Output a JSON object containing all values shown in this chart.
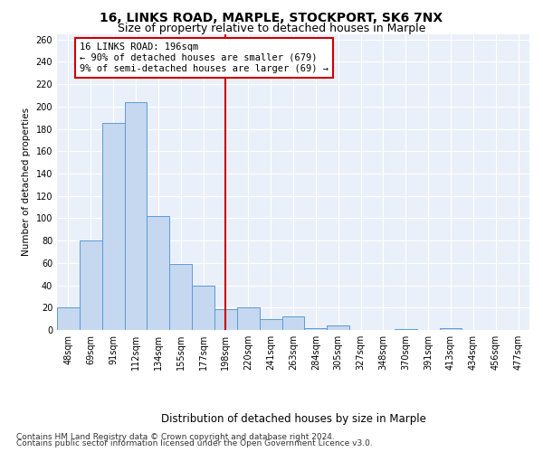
{
  "title": "16, LINKS ROAD, MARPLE, STOCKPORT, SK6 7NX",
  "subtitle": "Size of property relative to detached houses in Marple",
  "xlabel": "Distribution of detached houses by size in Marple",
  "ylabel": "Number of detached properties",
  "categories": [
    "48sqm",
    "69sqm",
    "91sqm",
    "112sqm",
    "134sqm",
    "155sqm",
    "177sqm",
    "198sqm",
    "220sqm",
    "241sqm",
    "263sqm",
    "284sqm",
    "305sqm",
    "327sqm",
    "348sqm",
    "370sqm",
    "391sqm",
    "413sqm",
    "434sqm",
    "456sqm",
    "477sqm"
  ],
  "values": [
    20,
    80,
    185,
    204,
    102,
    59,
    40,
    19,
    20,
    10,
    12,
    2,
    4,
    0,
    0,
    1,
    0,
    2,
    0,
    0,
    0
  ],
  "bar_color": "#c5d8f0",
  "bar_edge_color": "#5b9bd5",
  "background_color": "#eaf0f9",
  "grid_color": "#ffffff",
  "annotation_box_color": "#cc0000",
  "vline_color": "#cc0000",
  "annotation_text": "16 LINKS ROAD: 196sqm\n← 90% of detached houses are smaller (679)\n9% of semi-detached houses are larger (69) →",
  "footer_line1": "Contains HM Land Registry data © Crown copyright and database right 2024.",
  "footer_line2": "Contains public sector information licensed under the Open Government Licence v3.0.",
  "ylim": [
    0,
    265
  ],
  "yticks": [
    0,
    20,
    40,
    60,
    80,
    100,
    120,
    140,
    160,
    180,
    200,
    220,
    240,
    260
  ],
  "title_fontsize": 10,
  "subtitle_fontsize": 9,
  "xlabel_fontsize": 8.5,
  "ylabel_fontsize": 7.5,
  "tick_fontsize": 7,
  "annotation_fontsize": 7.5,
  "footer_fontsize": 6.5
}
